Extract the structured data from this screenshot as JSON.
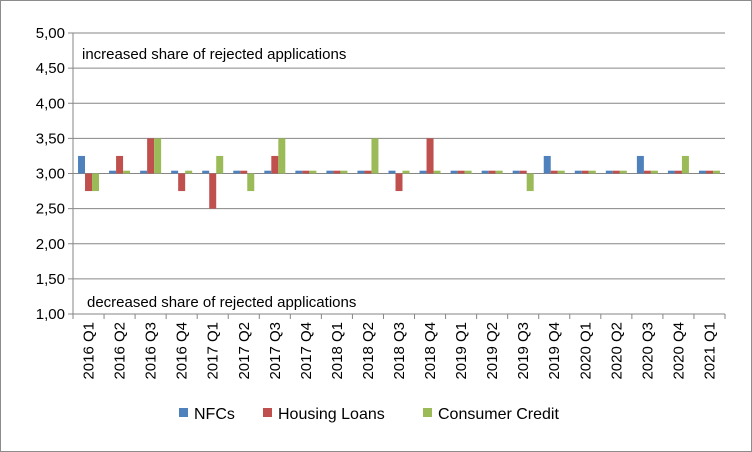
{
  "chart_data": {
    "type": "bar",
    "categories": [
      "2016 Q1",
      "2016 Q2",
      "2016 Q3",
      "2016 Q4",
      "2017 Q1",
      "2017 Q2",
      "2017 Q3",
      "2017 Q4",
      "2018 Q1",
      "2018 Q2",
      "2018 Q3",
      "2018 Q4",
      "2019 Q1",
      "2019 Q2",
      "2019 Q3",
      "2019 Q4",
      "2020 Q1",
      "2020 Q2",
      "2020 Q3",
      "2020 Q4",
      "2021 Q1"
    ],
    "series": [
      {
        "name": "NFCs",
        "color": "#4f81bd",
        "values": [
          3.25,
          3.04,
          3.04,
          3.04,
          3.04,
          3.04,
          3.04,
          3.04,
          3.04,
          3.04,
          3.04,
          3.04,
          3.04,
          3.04,
          3.04,
          3.25,
          3.04,
          3.04,
          3.25,
          3.04,
          3.04
        ]
      },
      {
        "name": "Housing Loans",
        "color": "#c0504d",
        "values": [
          2.75,
          3.25,
          3.5,
          2.75,
          2.5,
          3.04,
          3.25,
          3.04,
          3.04,
          3.04,
          2.75,
          3.5,
          3.04,
          3.04,
          3.04,
          3.04,
          3.04,
          3.04,
          3.04,
          3.04,
          3.04
        ]
      },
      {
        "name": "Consumer Credit",
        "color": "#9bbb59",
        "values": [
          2.75,
          3.04,
          3.5,
          3.04,
          3.25,
          2.75,
          3.5,
          3.04,
          3.04,
          3.5,
          3.04,
          3.04,
          3.04,
          3.04,
          2.75,
          3.04,
          3.04,
          3.04,
          3.04,
          3.25,
          3.04
        ]
      }
    ],
    "baseline": 3.0,
    "ylim": [
      1.0,
      5.0
    ],
    "yticks": [
      "1,00",
      "1,50",
      "2,00",
      "2,50",
      "3,00",
      "3,50",
      "4,00",
      "4,50",
      "5,00"
    ],
    "grid": true,
    "legend": "bottom",
    "annotations": {
      "top": "increased  share of rejected applications",
      "bottom": "decreased share of rejected applications"
    }
  }
}
